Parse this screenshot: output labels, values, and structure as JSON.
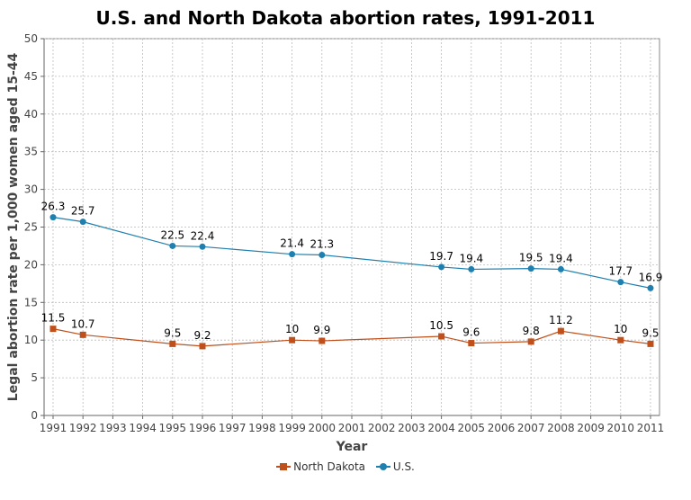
{
  "chart_data": {
    "type": "line",
    "title": "U.S. and North Dakota abortion rates, 1991-2011",
    "xlabel": "Year",
    "ylabel": "Legal abortion rate per 1,000 women aged 15-44",
    "categories": [
      "1991",
      "1992",
      "1993",
      "1994",
      "1995",
      "1996",
      "1997",
      "1998",
      "1999",
      "2000",
      "2001",
      "2002",
      "2003",
      "2004",
      "2005",
      "2006",
      "2007",
      "2008",
      "2009",
      "2010",
      "2011"
    ],
    "yticks": [
      "0",
      "5",
      "10",
      "15",
      "20",
      "25",
      "30",
      "35",
      "40",
      "45",
      "50"
    ],
    "ylim": [
      0,
      50
    ],
    "grid": true,
    "legend_position": "bottom",
    "series": [
      {
        "name": "North Dakota",
        "color": "#c0501b",
        "marker": "square",
        "x": [
          "1991",
          "1992",
          "1995",
          "1996",
          "1999",
          "2000",
          "2004",
          "2005",
          "2007",
          "2008",
          "2010",
          "2011"
        ],
        "values": [
          11.5,
          10.7,
          9.5,
          9.2,
          10,
          9.9,
          10.5,
          9.6,
          9.8,
          11.2,
          10,
          9.5
        ],
        "labels": [
          "11.5",
          "10.7",
          "9.5",
          "9.2",
          "10",
          "9.9",
          "10.5",
          "9.6",
          "9.8",
          "11.2",
          "10",
          "9.5"
        ]
      },
      {
        "name": "U.S.",
        "color": "#1f7fae",
        "marker": "circle",
        "x": [
          "1991",
          "1992",
          "1995",
          "1996",
          "1999",
          "2000",
          "2004",
          "2005",
          "2007",
          "2008",
          "2010",
          "2011"
        ],
        "values": [
          26.3,
          25.7,
          22.5,
          22.4,
          21.4,
          21.3,
          19.7,
          19.4,
          19.5,
          19.4,
          17.7,
          16.9
        ],
        "labels": [
          "26.3",
          "25.7",
          "22.5",
          "22.4",
          "21.4",
          "21.3",
          "19.7",
          "19.4",
          "19.5",
          "19.4",
          "17.7",
          "16.9"
        ]
      }
    ]
  }
}
